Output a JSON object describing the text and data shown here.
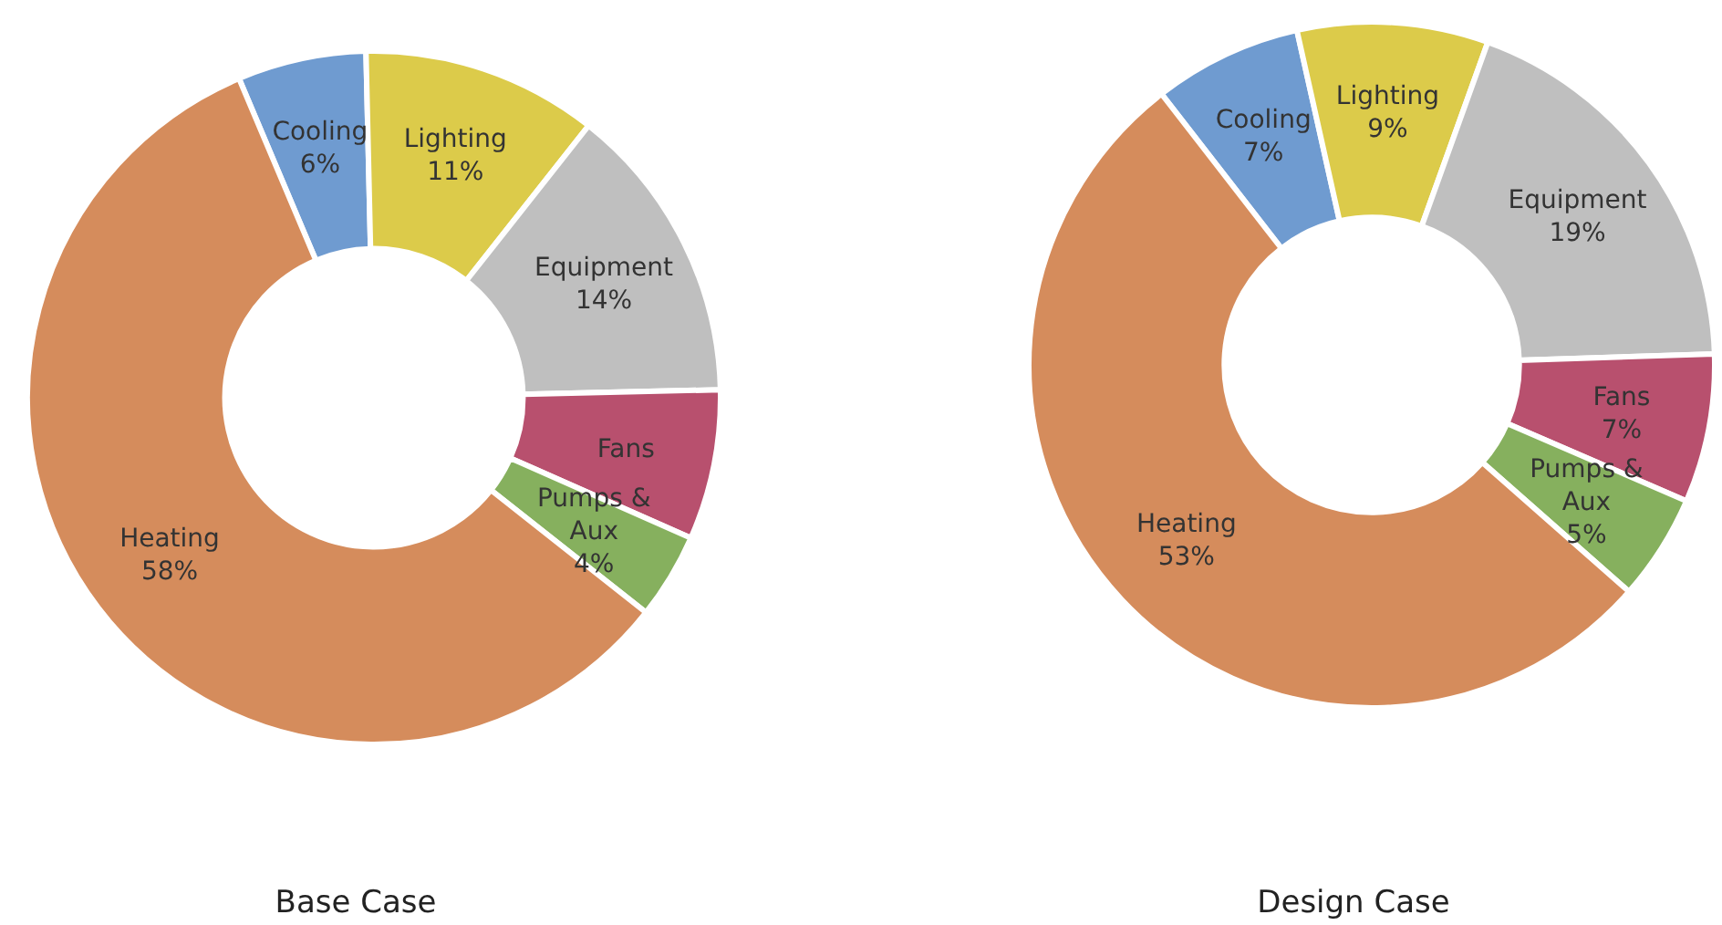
{
  "chart_data": [
    {
      "type": "donut",
      "title": "Base Case",
      "categories": [
        "Cooling",
        "Lighting",
        "Equipment",
        "Fans",
        "Pumps & Aux",
        "Heating"
      ],
      "values": [
        6,
        11,
        14,
        7,
        4,
        58
      ],
      "value_labels": [
        "6%",
        "11%",
        "14%",
        null,
        "4%",
        "58%"
      ],
      "colors": [
        "#6f9bd0",
        "#dccb4a",
        "#bfbfbf",
        "#b8506e",
        "#86b05e",
        "#d58c5c"
      ]
    },
    {
      "type": "donut",
      "title": "Design Case",
      "categories": [
        "Cooling",
        "Lighting",
        "Equipment",
        "Fans",
        "Pumps & Aux",
        "Heating"
      ],
      "values": [
        7,
        9,
        19,
        7,
        5,
        53
      ],
      "value_labels": [
        "7%",
        "9%",
        "19%",
        "7%",
        "5%",
        "53%"
      ],
      "colors": [
        "#6f9bd0",
        "#dccb4a",
        "#bfbfbf",
        "#b8506e",
        "#86b05e",
        "#d58c5c"
      ]
    }
  ]
}
